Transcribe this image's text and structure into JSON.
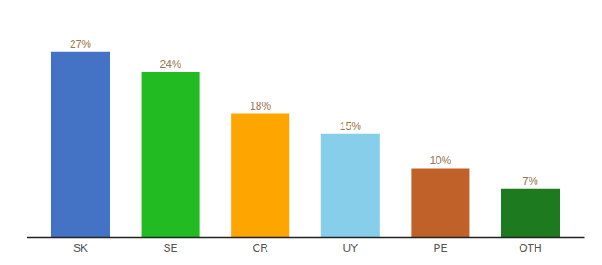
{
  "chart_data": {
    "type": "bar",
    "categories": [
      "SK",
      "SE",
      "CR",
      "UY",
      "PE",
      "OTH"
    ],
    "values": [
      27,
      24,
      18,
      15,
      10,
      7
    ],
    "value_labels": [
      "27%",
      "24%",
      "18%",
      "15%",
      "10%",
      "7%"
    ],
    "colors": [
      "#4472c4",
      "#22bb22",
      "#ffa500",
      "#87ceeb",
      "#c1612a",
      "#1e7a1e"
    ],
    "ylim": [
      0,
      32
    ],
    "data_labels": true,
    "tick_labels": "x"
  }
}
